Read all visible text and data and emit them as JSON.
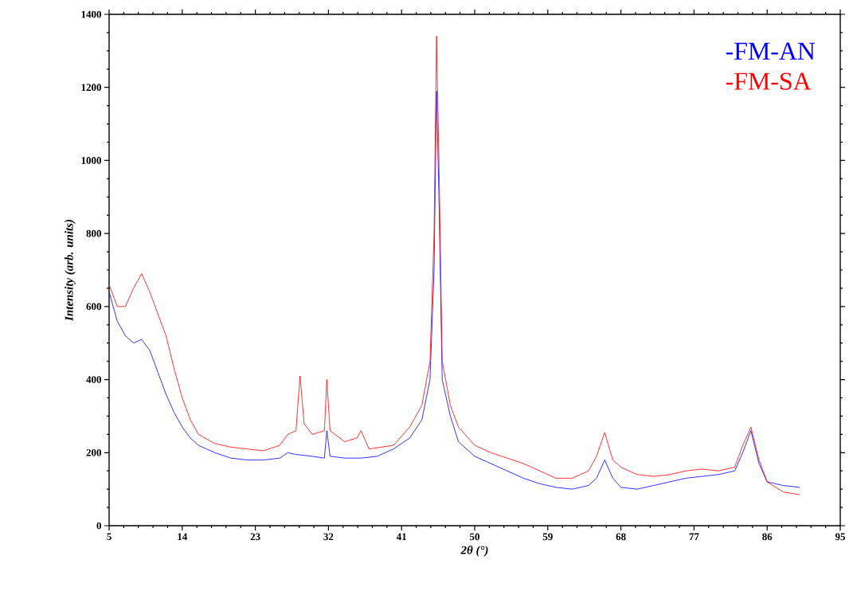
{
  "chart_data": {
    "type": "line",
    "xlabel": "2θ (°)",
    "ylabel": "Intensity (arb. units)",
    "xlim": [
      5,
      95
    ],
    "xticks": [
      5,
      14,
      23,
      32,
      41,
      50,
      59,
      68,
      77,
      86,
      95
    ],
    "ylim": [
      0,
      1400
    ],
    "yticks": [
      0,
      200,
      400,
      600,
      800,
      1000,
      1200,
      1400
    ],
    "grid": false,
    "legend": "top right",
    "marker": "none",
    "line_style": "solid",
    "series": [
      {
        "name": "-FM-AN",
        "color": "#0000ff",
        "x": [
          5,
          6,
          7,
          8,
          9,
          10,
          11,
          12,
          13,
          14,
          15,
          16,
          18,
          20,
          22,
          24,
          26,
          27,
          28,
          30,
          31.5,
          31.8,
          32.2,
          34,
          36,
          38,
          40,
          42,
          43.5,
          44.5,
          45,
          45.3,
          45.6,
          46,
          47,
          48,
          50,
          52,
          54,
          56,
          58,
          60,
          62,
          64,
          65,
          66,
          67,
          68,
          70,
          72,
          74,
          76,
          78,
          80,
          82,
          83,
          84,
          85,
          86,
          88,
          90
        ],
        "values": [
          640,
          560,
          520,
          500,
          510,
          480,
          420,
          360,
          310,
          270,
          240,
          220,
          200,
          185,
          180,
          180,
          185,
          200,
          195,
          190,
          185,
          260,
          190,
          185,
          185,
          190,
          210,
          240,
          290,
          400,
          700,
          1190,
          900,
          400,
          300,
          230,
          190,
          170,
          150,
          130,
          115,
          105,
          100,
          110,
          130,
          180,
          130,
          105,
          100,
          110,
          120,
          130,
          135,
          140,
          150,
          200,
          260,
          170,
          120,
          110,
          105
        ]
      },
      {
        "name": "-FM-SA",
        "color": "#ff0000",
        "x": [
          5,
          6,
          7,
          8,
          9,
          10,
          11,
          12,
          13,
          14,
          15,
          16,
          18,
          20,
          22,
          24,
          26,
          27,
          28,
          28.5,
          29,
          30,
          31.5,
          31.8,
          32.2,
          34,
          35.5,
          36,
          37,
          40,
          42,
          43.5,
          44.5,
          45,
          45.3,
          45.6,
          46,
          47,
          48,
          50,
          52,
          54,
          56,
          58,
          60,
          62,
          64,
          65,
          66,
          67,
          68,
          70,
          72,
          74,
          76,
          78,
          80,
          82,
          83,
          84,
          85,
          86,
          88,
          90
        ],
        "values": [
          660,
          600,
          600,
          650,
          690,
          640,
          580,
          520,
          430,
          350,
          290,
          250,
          225,
          215,
          210,
          205,
          220,
          250,
          260,
          410,
          280,
          250,
          260,
          400,
          260,
          230,
          240,
          260,
          210,
          220,
          270,
          330,
          450,
          800,
          1340,
          1000,
          450,
          330,
          270,
          220,
          200,
          185,
          170,
          150,
          130,
          130,
          150,
          190,
          255,
          180,
          160,
          140,
          135,
          140,
          150,
          155,
          150,
          160,
          220,
          270,
          180,
          120,
          92,
          85
        ]
      }
    ]
  }
}
